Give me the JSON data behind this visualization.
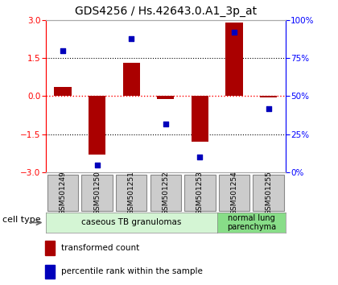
{
  "title": "GDS4256 / Hs.42643.0.A1_3p_at",
  "samples": [
    "GSM501249",
    "GSM501250",
    "GSM501251",
    "GSM501252",
    "GSM501253",
    "GSM501254",
    "GSM501255"
  ],
  "red_values": [
    0.35,
    -2.3,
    1.3,
    -0.1,
    -1.8,
    2.9,
    -0.05
  ],
  "blue_values": [
    80,
    5,
    88,
    32,
    10,
    92,
    42
  ],
  "ylim": [
    -3,
    3
  ],
  "y2lim": [
    0,
    100
  ],
  "yticks": [
    -3,
    -1.5,
    0,
    1.5,
    3
  ],
  "y2ticks": [
    0,
    25,
    50,
    75,
    100
  ],
  "y2ticklabels": [
    "0%",
    "25%",
    "50%",
    "75%",
    "100%"
  ],
  "hlines_dotted": [
    -1.5,
    1.5
  ],
  "hline_red": 0,
  "group1_label": "caseous TB granulomas",
  "group2_label": "normal lung\nparenchyma",
  "group1_color": "#d4f5d4",
  "group2_color": "#88dd88",
  "bar_color": "#aa0000",
  "dot_color": "#0000bb",
  "bar_width": 0.5,
  "cell_type_label": "cell type",
  "legend_red": "transformed count",
  "legend_blue": "percentile rank within the sample",
  "title_fontsize": 10,
  "tick_fontsize": 7.5,
  "sample_label_fontsize": 6.5,
  "group_label_fontsize": 7.5,
  "legend_fontsize": 7.5,
  "cell_type_fontsize": 8,
  "label_box_color": "#cccccc",
  "label_box_edge": "#888888",
  "group1_n": 5,
  "group2_n": 2
}
